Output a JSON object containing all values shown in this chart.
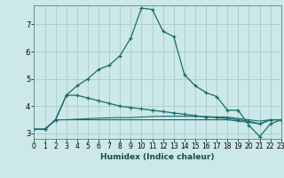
{
  "title": "",
  "xlabel": "Humidex (Indice chaleur)",
  "bg_color": "#cce8e8",
  "grid_color": "#aacccc",
  "line_color": "#1a6b6b",
  "xlim": [
    0,
    23
  ],
  "ylim": [
    2.8,
    7.7
  ],
  "xticks": [
    0,
    1,
    2,
    3,
    4,
    5,
    6,
    7,
    8,
    9,
    10,
    11,
    12,
    13,
    14,
    15,
    16,
    17,
    18,
    19,
    20,
    21,
    22,
    23
  ],
  "yticks": [
    3,
    4,
    5,
    6,
    7
  ],
  "line1_x": [
    0,
    1,
    2,
    3,
    4,
    5,
    6,
    7,
    8,
    9,
    10,
    11,
    12,
    13,
    14,
    15,
    16,
    17,
    18,
    19,
    20,
    21,
    22,
    23
  ],
  "line1_y": [
    3.15,
    3.15,
    3.5,
    4.4,
    4.75,
    5.0,
    5.35,
    5.5,
    5.85,
    6.5,
    7.6,
    7.55,
    6.75,
    6.55,
    5.15,
    4.75,
    4.5,
    4.35,
    3.85,
    3.85,
    3.3,
    2.88,
    3.35,
    3.5
  ],
  "line2_x": [
    0,
    1,
    2,
    3,
    4,
    5,
    6,
    7,
    8,
    9,
    10,
    11,
    12,
    13,
    14,
    15,
    16,
    17,
    18,
    19,
    20,
    21,
    22,
    23
  ],
  "line2_y": [
    3.15,
    3.15,
    3.5,
    4.4,
    4.4,
    4.3,
    4.2,
    4.1,
    4.0,
    3.95,
    3.9,
    3.85,
    3.8,
    3.75,
    3.7,
    3.65,
    3.6,
    3.58,
    3.55,
    3.5,
    3.45,
    3.35,
    3.5,
    3.5
  ],
  "line3_x": [
    0,
    1,
    2,
    3,
    4,
    5,
    6,
    7,
    8,
    9,
    10,
    11,
    12,
    13,
    14,
    15,
    16,
    17,
    18,
    19,
    20,
    21,
    22,
    23
  ],
  "line3_y": [
    3.15,
    3.15,
    3.5,
    3.5,
    3.52,
    3.54,
    3.56,
    3.57,
    3.58,
    3.58,
    3.6,
    3.62,
    3.63,
    3.63,
    3.63,
    3.62,
    3.62,
    3.6,
    3.6,
    3.55,
    3.5,
    3.45,
    3.5,
    3.5
  ],
  "line4_x": [
    0,
    1,
    2,
    3,
    4,
    5,
    6,
    7,
    8,
    9,
    10,
    11,
    12,
    13,
    14,
    15,
    16,
    17,
    18,
    19,
    20,
    21,
    22,
    23
  ],
  "line4_y": [
    3.15,
    3.15,
    3.5,
    3.5,
    3.5,
    3.5,
    3.5,
    3.5,
    3.5,
    3.5,
    3.5,
    3.5,
    3.5,
    3.5,
    3.5,
    3.5,
    3.5,
    3.5,
    3.5,
    3.45,
    3.4,
    3.35,
    3.5,
    3.5
  ]
}
